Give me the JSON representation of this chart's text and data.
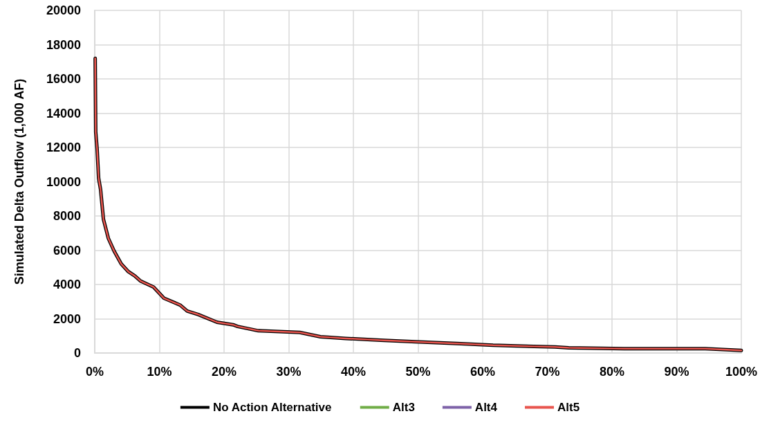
{
  "chart_data": {
    "type": "line",
    "ylabel": "Simulated Delta Outflow (1,000 AF)",
    "x": [
      0.07,
      0.15,
      0.36,
      0.6,
      0.9,
      1.35,
      2.1,
      3.0,
      4.1,
      5.2,
      6.2,
      7.1,
      9.1,
      10.7,
      13.2,
      14.3,
      16.0,
      18.9,
      21.4,
      22.1,
      25.3,
      31.7,
      34.9,
      38.8,
      44.2,
      50.2,
      56.6,
      61.6,
      71.2,
      73.3,
      81.9,
      90.1,
      94.4,
      100
    ],
    "series": [
      {
        "name": "No Action Alternative",
        "color": "#000000",
        "values": [
          17200,
          12900,
          11950,
          10200,
          9550,
          7800,
          6700,
          5950,
          5200,
          4750,
          4500,
          4200,
          3850,
          3200,
          2800,
          2450,
          2250,
          1800,
          1650,
          1550,
          1300,
          1200,
          950,
          850,
          750,
          650,
          550,
          450,
          350,
          300,
          250,
          250,
          250,
          150
        ]
      },
      {
        "name": "Alt3",
        "color": "#70ad47",
        "values": [
          null,
          null,
          null,
          null,
          null,
          null,
          null,
          null,
          null,
          null,
          null,
          null,
          null,
          null,
          null,
          null,
          null,
          null,
          null,
          null,
          null,
          null,
          null,
          null,
          null,
          null,
          null,
          null,
          null,
          null,
          null,
          null,
          null,
          null
        ]
      },
      {
        "name": "Alt4",
        "color": "#7e62a8",
        "values": [
          null,
          null,
          null,
          null,
          null,
          null,
          null,
          null,
          null,
          null,
          null,
          null,
          null,
          null,
          null,
          null,
          null,
          null,
          null,
          null,
          null,
          null,
          null,
          null,
          null,
          null,
          null,
          null,
          null,
          null,
          null,
          null,
          null,
          null
        ]
      },
      {
        "name": "Alt5",
        "color": "#e8554e",
        "values": [
          17200,
          12900,
          11950,
          10200,
          9550,
          7800,
          6700,
          5950,
          5200,
          4750,
          4500,
          4200,
          3850,
          3200,
          2800,
          2450,
          2250,
          1800,
          1650,
          1550,
          1300,
          1200,
          950,
          850,
          750,
          650,
          550,
          450,
          350,
          300,
          250,
          250,
          250,
          150
        ]
      }
    ],
    "xlim": [
      0,
      100
    ],
    "xticks": [
      {
        "value": 0,
        "label": "0%"
      },
      {
        "value": 10,
        "label": "10%"
      },
      {
        "value": 20,
        "label": "20%"
      },
      {
        "value": 30,
        "label": "30%"
      },
      {
        "value": 40,
        "label": "40%"
      },
      {
        "value": 50,
        "label": "50%"
      },
      {
        "value": 60,
        "label": "60%"
      },
      {
        "value": 70,
        "label": "70%"
      },
      {
        "value": 80,
        "label": "80%"
      },
      {
        "value": 90,
        "label": "90%"
      },
      {
        "value": 100,
        "label": "100%"
      }
    ],
    "ylim": [
      0,
      20000
    ],
    "yticks": [
      0,
      2000,
      4000,
      6000,
      8000,
      10000,
      12000,
      14000,
      16000,
      18000,
      20000
    ],
    "grid": true,
    "legend": "bottom",
    "marker": "none",
    "line_style": "solid"
  }
}
